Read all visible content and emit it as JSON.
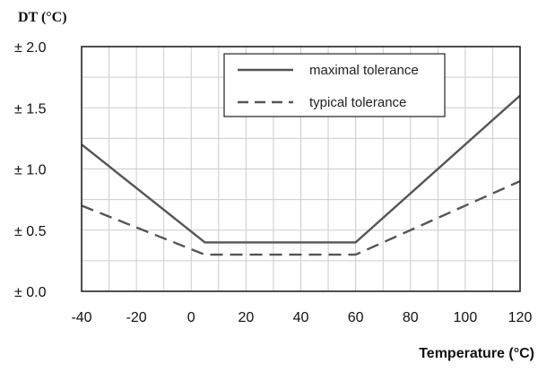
{
  "chart_data": {
    "type": "line",
    "ylabel": "DT (°C)",
    "xlabel": "Temperature (°C)",
    "xlim": [
      -40,
      120
    ],
    "ylim": [
      0,
      2.0
    ],
    "x_ticks": [
      -40,
      -20,
      0,
      20,
      40,
      60,
      80,
      100,
      120
    ],
    "x_tick_labels": [
      "-40",
      "-20",
      "0",
      "20",
      "40",
      "60",
      "80",
      "100",
      "120"
    ],
    "y_ticks": [
      0,
      0.5,
      1.0,
      1.5,
      2.0
    ],
    "y_tick_labels": [
      "± 0.0",
      "± 0.5",
      "± 1.0",
      "± 1.5",
      "± 2.0"
    ],
    "grid": true,
    "legend_position": "top-right",
    "series": [
      {
        "name": "maximal tolerance",
        "style": "solid",
        "color": "#555555",
        "x": [
          -40,
          5,
          60,
          120
        ],
        "y": [
          1.2,
          0.4,
          0.4,
          1.6
        ]
      },
      {
        "name": "typical tolerance",
        "style": "dashed",
        "color": "#555555",
        "x": [
          -40,
          5,
          60,
          120
        ],
        "y": [
          0.7,
          0.3,
          0.3,
          0.9
        ]
      }
    ]
  }
}
